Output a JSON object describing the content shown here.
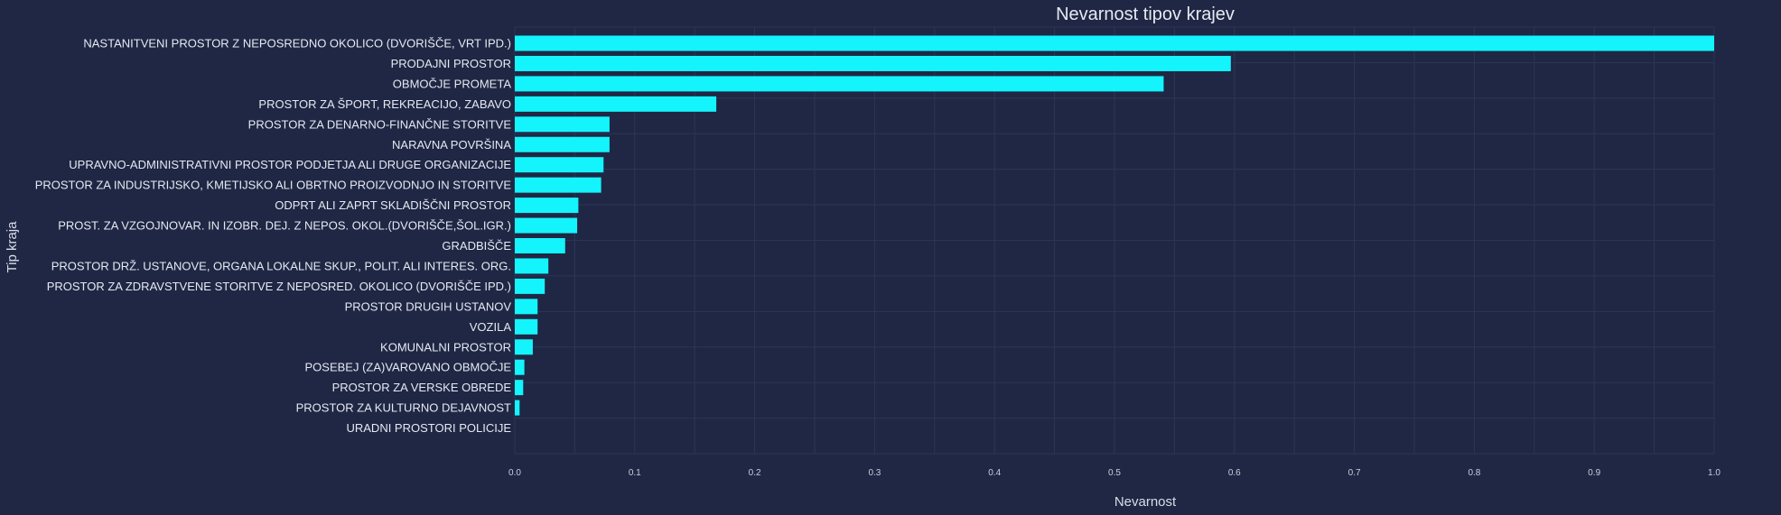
{
  "chart_data": {
    "type": "bar",
    "orientation": "horizontal",
    "title": "Nevarnost tipov krajev",
    "xlabel": "Nevarnost",
    "ylabel": "Tip kraja",
    "xlim": [
      0,
      1.0
    ],
    "xticks": [
      "0.0",
      "0.1",
      "0.2",
      "0.3",
      "0.4",
      "0.5",
      "0.6",
      "0.7",
      "0.8",
      "0.9",
      "1.0"
    ],
    "grid": true,
    "colors": {
      "background": "#1f2744",
      "bar": "#13f4fc",
      "grid": "#2b3657"
    },
    "categories": [
      "URADNI PROSTORI POLICIJE",
      "PROSTOR ZA KULTURNO DEJAVNOST",
      "PROSTOR ZA VERSKE OBREDE",
      "POSEBEJ (ZA)VAROVANO OBMOČJE",
      "KOMUNALNI PROSTOR",
      "VOZILA",
      "PROSTOR DRUGIH USTANOV",
      "PROSTOR ZA ZDRAVSTVENE STORITVE Z NEPOSRED. OKOLICO (DVORIŠČE IPD.)",
      "PROSTOR DRŽ. USTANOVE, ORGANA LOKALNE SKUP., POLIT. ALI INTERES. ORG.",
      "GRADBIŠČE",
      "PROST. ZA VZGOJNOVAR. IN IZOBR. DEJ. Z NEPOS. OKOL.(DVORIŠČE,ŠOL.IGR.)",
      "ODPRT ALI ZAPRT SKLADIŠČNI PROSTOR",
      "PROSTOR ZA INDUSTRIJSKO, KMETIJSKO ALI OBRTNO PROIZVODNJO IN STORITVE",
      "UPRAVNO-ADMINISTRATIVNI PROSTOR PODJETJA ALI DRUGE ORGANIZACIJE",
      "NARAVNA POVRŠINA",
      "PROSTOR ZA DENARNO-FINANČNE STORITVE",
      "PROSTOR ZA ŠPORT, REKREACIJO, ZABAVO",
      "OBMOČJE PROMETA",
      "PRODAJNI PROSTOR",
      "NASTANITVENI PROSTOR Z NEPOSREDNO OKOLICO (DVORIŠČE, VRT IPD.)"
    ],
    "values": [
      0.0,
      0.004,
      0.007,
      0.008,
      0.015,
      0.019,
      0.019,
      0.025,
      0.028,
      0.042,
      0.052,
      0.053,
      0.072,
      0.074,
      0.079,
      0.079,
      0.168,
      0.541,
      0.597,
      1.0
    ]
  }
}
